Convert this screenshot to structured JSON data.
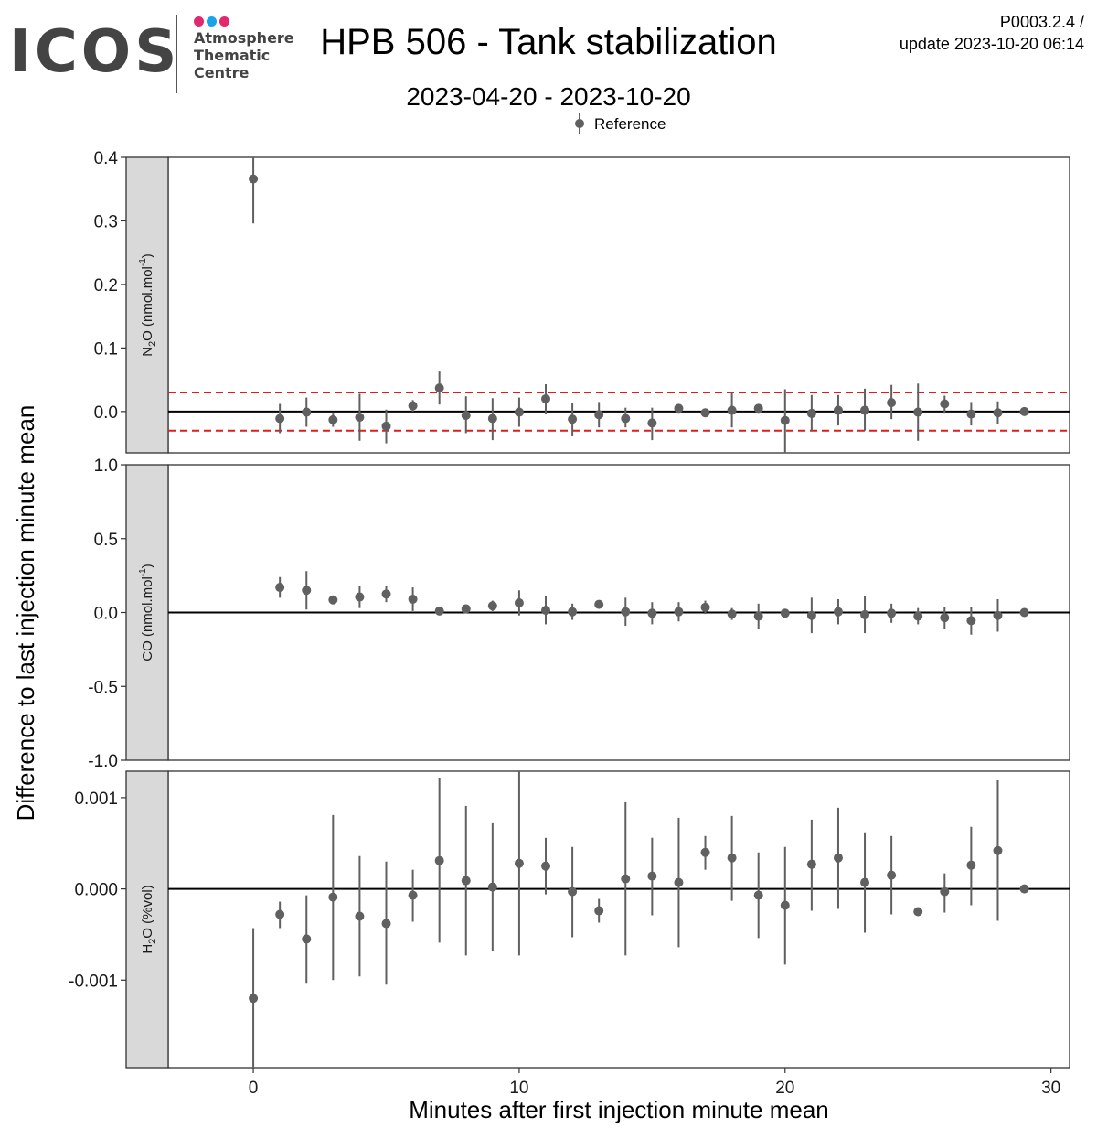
{
  "logo": {
    "name": "ICOS",
    "lines": [
      "Atmosphere",
      "Thematic",
      "Centre"
    ],
    "dot_colors": [
      "#e2286e",
      "#1aa3e8",
      "#e2286e"
    ]
  },
  "header": {
    "title": "HPB 506 - Tank stabilization",
    "subtitle": "2023-04-20 - 2023-10-20",
    "version": "P0003.2.4 /",
    "update": "update  2023-10-20 06:14"
  },
  "colors": {
    "points": "#606060",
    "threshold": "#e41a1c",
    "strip": "#d9d9d9"
  },
  "chart_data": {
    "type": "scatter",
    "xlabel": "Minutes after first injection minute mean",
    "ylabel": "Difference to last injection minute mean",
    "legend": {
      "label": "Reference",
      "position": "top"
    },
    "xlim": [
      -3.2,
      30.7
    ],
    "x_ticks": [
      0,
      10,
      20,
      30
    ],
    "panels": [
      {
        "label": "N2O (nmol.mol-1)",
        "ylim": [
          -0.065,
          0.4
        ],
        "y_ticks": [
          0.0,
          0.1,
          0.2,
          0.3,
          0.4
        ],
        "y_tick_labels": [
          "0.0",
          "0.1",
          "0.2",
          "0.3",
          "0.4"
        ],
        "hlines": [
          0.03,
          -0.03
        ],
        "points": [
          {
            "x": 0,
            "y": 0.366,
            "lo": 0.296,
            "hi": 0.4
          },
          {
            "x": 1,
            "y": -0.011,
            "lo": -0.034,
            "hi": 0.012
          },
          {
            "x": 2,
            "y": -0.001,
            "lo": -0.024,
            "hi": 0.022
          },
          {
            "x": 3,
            "y": -0.013,
            "lo": -0.024,
            "hi": -0.002
          },
          {
            "x": 4,
            "y": -0.009,
            "lo": -0.046,
            "hi": 0.028
          },
          {
            "x": 5,
            "y": -0.023,
            "lo": -0.05,
            "hi": 0.003
          },
          {
            "x": 6,
            "y": 0.009,
            "lo": 0.0,
            "hi": 0.018
          },
          {
            "x": 7,
            "y": 0.037,
            "lo": 0.011,
            "hi": 0.063
          },
          {
            "x": 8,
            "y": -0.006,
            "lo": -0.034,
            "hi": 0.024
          },
          {
            "x": 9,
            "y": -0.011,
            "lo": -0.045,
            "hi": 0.021
          },
          {
            "x": 10,
            "y": -0.001,
            "lo": -0.024,
            "hi": 0.022
          },
          {
            "x": 11,
            "y": 0.02,
            "lo": -0.003,
            "hi": 0.043
          },
          {
            "x": 12,
            "y": -0.012,
            "lo": -0.039,
            "hi": 0.014
          },
          {
            "x": 13,
            "y": -0.005,
            "lo": -0.025,
            "hi": 0.015
          },
          {
            "x": 14,
            "y": -0.011,
            "lo": -0.025,
            "hi": 0.006
          },
          {
            "x": 15,
            "y": -0.018,
            "lo": -0.045,
            "hi": 0.006
          },
          {
            "x": 16,
            "y": 0.005,
            "lo": 0.002,
            "hi": 0.008
          },
          {
            "x": 17,
            "y": -0.002,
            "lo": -0.006,
            "hi": 0.002
          },
          {
            "x": 18,
            "y": 0.002,
            "lo": -0.025,
            "hi": 0.03
          },
          {
            "x": 19,
            "y": 0.005,
            "lo": 0.001,
            "hi": 0.009
          },
          {
            "x": 20,
            "y": -0.014,
            "lo": -0.065,
            "hi": 0.035
          },
          {
            "x": 21,
            "y": -0.003,
            "lo": -0.031,
            "hi": 0.026
          },
          {
            "x": 22,
            "y": 0.002,
            "lo": -0.022,
            "hi": 0.026
          },
          {
            "x": 23,
            "y": 0.002,
            "lo": -0.03,
            "hi": 0.036
          },
          {
            "x": 24,
            "y": 0.014,
            "lo": -0.012,
            "hi": 0.042
          },
          {
            "x": 25,
            "y": -0.001,
            "lo": -0.046,
            "hi": 0.044
          },
          {
            "x": 26,
            "y": 0.012,
            "lo": -0.002,
            "hi": 0.025
          },
          {
            "x": 27,
            "y": -0.004,
            "lo": -0.022,
            "hi": 0.015
          },
          {
            "x": 28,
            "y": -0.002,
            "lo": -0.019,
            "hi": 0.016
          },
          {
            "x": 29,
            "y": 0.0,
            "lo": 0.0,
            "hi": 0.0
          }
        ]
      },
      {
        "label": "CO (nmol.mol-1)",
        "ylim": [
          -1.0,
          1.0
        ],
        "y_ticks": [
          -1.0,
          -0.5,
          0.0,
          0.5,
          1.0
        ],
        "y_tick_labels": [
          "-1.0",
          "-0.5",
          "0.0",
          "0.5",
          "1.0"
        ],
        "hlines": [],
        "points": [
          {
            "x": 1,
            "y": 0.17,
            "lo": 0.1,
            "hi": 0.24
          },
          {
            "x": 2,
            "y": 0.15,
            "lo": 0.02,
            "hi": 0.28
          },
          {
            "x": 3,
            "y": 0.085,
            "lo": 0.06,
            "hi": 0.11
          },
          {
            "x": 4,
            "y": 0.105,
            "lo": 0.03,
            "hi": 0.18
          },
          {
            "x": 5,
            "y": 0.125,
            "lo": 0.07,
            "hi": 0.18
          },
          {
            "x": 6,
            "y": 0.09,
            "lo": 0.01,
            "hi": 0.17
          },
          {
            "x": 7,
            "y": 0.01,
            "lo": 0.0,
            "hi": 0.02
          },
          {
            "x": 8,
            "y": 0.025,
            "lo": 0.015,
            "hi": 0.035
          },
          {
            "x": 9,
            "y": 0.045,
            "lo": 0.01,
            "hi": 0.08
          },
          {
            "x": 10,
            "y": 0.065,
            "lo": -0.02,
            "hi": 0.15
          },
          {
            "x": 11,
            "y": 0.015,
            "lo": -0.08,
            "hi": 0.11
          },
          {
            "x": 12,
            "y": 0.005,
            "lo": -0.05,
            "hi": 0.06
          },
          {
            "x": 13,
            "y": 0.055,
            "lo": 0.045,
            "hi": 0.065
          },
          {
            "x": 14,
            "y": 0.005,
            "lo": -0.09,
            "hi": 0.1
          },
          {
            "x": 15,
            "y": -0.005,
            "lo": -0.08,
            "hi": 0.07
          },
          {
            "x": 16,
            "y": 0.005,
            "lo": -0.06,
            "hi": 0.07
          },
          {
            "x": 17,
            "y": 0.035,
            "lo": -0.01,
            "hi": 0.08
          },
          {
            "x": 18,
            "y": -0.01,
            "lo": -0.05,
            "hi": 0.03
          },
          {
            "x": 19,
            "y": -0.025,
            "lo": -0.11,
            "hi": 0.06
          },
          {
            "x": 20,
            "y": -0.005,
            "lo": -0.02,
            "hi": 0.01
          },
          {
            "x": 21,
            "y": -0.02,
            "lo": -0.14,
            "hi": 0.1
          },
          {
            "x": 22,
            "y": 0.005,
            "lo": -0.08,
            "hi": 0.09
          },
          {
            "x": 23,
            "y": -0.015,
            "lo": -0.14,
            "hi": 0.11
          },
          {
            "x": 24,
            "y": -0.005,
            "lo": -0.07,
            "hi": 0.06
          },
          {
            "x": 25,
            "y": -0.025,
            "lo": -0.08,
            "hi": 0.03
          },
          {
            "x": 26,
            "y": -0.035,
            "lo": -0.11,
            "hi": 0.04
          },
          {
            "x": 27,
            "y": -0.055,
            "lo": -0.15,
            "hi": 0.04
          },
          {
            "x": 28,
            "y": -0.02,
            "lo": -0.13,
            "hi": 0.09
          },
          {
            "x": 29,
            "y": 0.0,
            "lo": 0.0,
            "hi": 0.0
          }
        ]
      },
      {
        "label": "H2O (%vol)",
        "ylim": [
          -0.00196,
          0.00129
        ],
        "y_ticks": [
          -0.001,
          0.0,
          0.001
        ],
        "y_tick_labels": [
          "-0.001",
          "0.000",
          "0.001"
        ],
        "hlines": [],
        "points": [
          {
            "x": 0,
            "y": -0.0012,
            "lo": -0.00196,
            "hi": -0.00043
          },
          {
            "x": 1,
            "y": -0.00028,
            "lo": -0.00043,
            "hi": -0.00014
          },
          {
            "x": 2,
            "y": -0.00055,
            "lo": -0.00104,
            "hi": -7e-05
          },
          {
            "x": 3,
            "y": -9e-05,
            "lo": -0.001,
            "hi": 0.00081
          },
          {
            "x": 4,
            "y": -0.0003,
            "lo": -0.00096,
            "hi": 0.00036
          },
          {
            "x": 5,
            "y": -0.00038,
            "lo": -0.00105,
            "hi": 0.0003
          },
          {
            "x": 6,
            "y": -7e-05,
            "lo": -0.00036,
            "hi": 0.00021
          },
          {
            "x": 7,
            "y": 0.00031,
            "lo": -0.00059,
            "hi": 0.00122
          },
          {
            "x": 8,
            "y": 9e-05,
            "lo": -0.00073,
            "hi": 0.00091
          },
          {
            "x": 9,
            "y": 2e-05,
            "lo": -0.00068,
            "hi": 0.00072
          },
          {
            "x": 10,
            "y": 0.00028,
            "lo": -0.00073,
            "hi": 0.00129
          },
          {
            "x": 11,
            "y": 0.00025,
            "lo": -6e-05,
            "hi": 0.00056
          },
          {
            "x": 12,
            "y": -3e-05,
            "lo": -0.00053,
            "hi": 0.00046
          },
          {
            "x": 13,
            "y": -0.00024,
            "lo": -0.00037,
            "hi": -0.00011
          },
          {
            "x": 14,
            "y": 0.00011,
            "lo": -0.00073,
            "hi": 0.00095
          },
          {
            "x": 15,
            "y": 0.00014,
            "lo": -0.00029,
            "hi": 0.00056
          },
          {
            "x": 16,
            "y": 7e-05,
            "lo": -0.00064,
            "hi": 0.00078
          },
          {
            "x": 17,
            "y": 0.0004,
            "lo": 0.00021,
            "hi": 0.00058
          },
          {
            "x": 18,
            "y": 0.00034,
            "lo": -0.00013,
            "hi": 0.0008
          },
          {
            "x": 19,
            "y": -7e-05,
            "lo": -0.00054,
            "hi": 0.0004
          },
          {
            "x": 20,
            "y": -0.00018,
            "lo": -0.00083,
            "hi": 0.00046
          },
          {
            "x": 21,
            "y": 0.00027,
            "lo": -0.00024,
            "hi": 0.00076
          },
          {
            "x": 22,
            "y": 0.00034,
            "lo": -0.00022,
            "hi": 0.00089
          },
          {
            "x": 23,
            "y": 7e-05,
            "lo": -0.00048,
            "hi": 0.00062
          },
          {
            "x": 24,
            "y": 0.00015,
            "lo": -0.00028,
            "hi": 0.00058
          },
          {
            "x": 25,
            "y": -0.00025,
            "lo": -0.00025,
            "hi": -0.00025
          },
          {
            "x": 26,
            "y": -3e-05,
            "lo": -0.00026,
            "hi": 0.00017
          },
          {
            "x": 27,
            "y": 0.00026,
            "lo": -0.00018,
            "hi": 0.00068
          },
          {
            "x": 28,
            "y": 0.00042,
            "lo": -0.00035,
            "hi": 0.00119
          },
          {
            "x": 29,
            "y": 0.0,
            "lo": 0.0,
            "hi": 0.0
          }
        ]
      }
    ]
  }
}
